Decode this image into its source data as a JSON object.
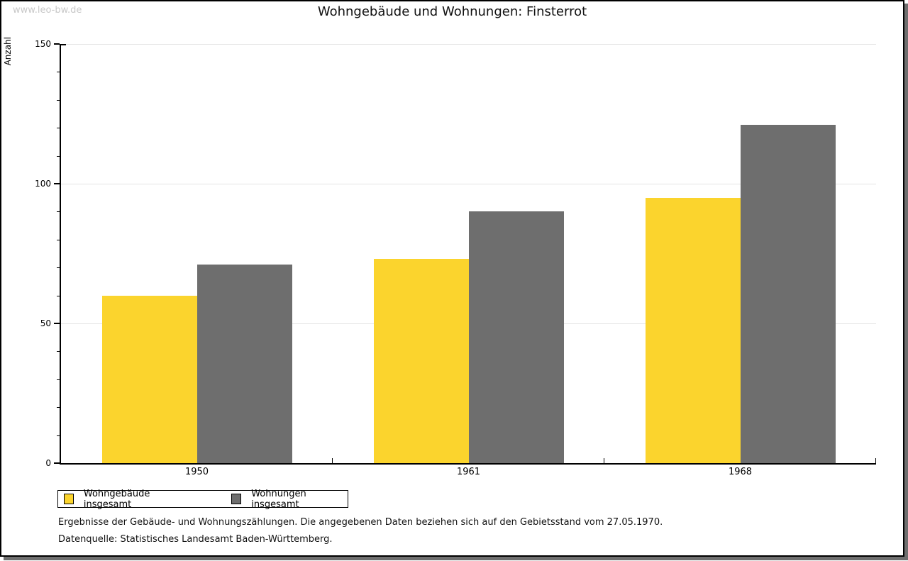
{
  "window": {
    "watermark": "www.leo-bw.de"
  },
  "chart_data": {
    "type": "bar",
    "title": "Wohngebäude und Wohnungen: Finsterrot",
    "ylabel": "Anzahl",
    "xlabel": "",
    "categories": [
      "1950",
      "1961",
      "1968"
    ],
    "series": [
      {
        "name": "Wohngebäude insgesamt",
        "color": "#FBD42D",
        "values": [
          60,
          73,
          95
        ]
      },
      {
        "name": "Wohnungen insgesamt",
        "color": "#6E6E6E",
        "values": [
          71,
          90,
          121
        ]
      }
    ],
    "ylim": [
      0,
      150
    ],
    "yticks": [
      0,
      50,
      100,
      150
    ],
    "minor_tick_step": 10,
    "grid": "horizontal-major",
    "legend_position": "bottom-left"
  },
  "footnotes": {
    "line1": "Ergebnisse der Gebäude- und Wohnungszählungen. Die angegebenen Daten beziehen sich auf den Gebietsstand vom 27.05.1970.",
    "line2": "Datenquelle: Statistisches Landesamt Baden-Württemberg."
  },
  "colors": {
    "series1": "#FBD42D",
    "series2": "#6E6E6E",
    "gridline": "#E4E4E4",
    "watermark": "#C8C8C8",
    "shadow": "#6F6F6F",
    "axis": "#000000"
  }
}
